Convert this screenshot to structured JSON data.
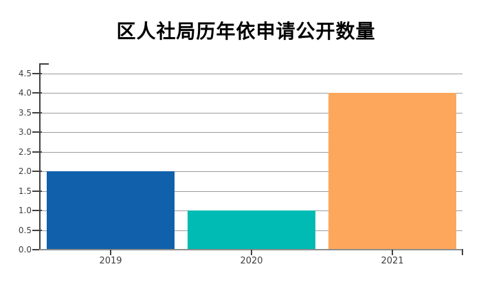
{
  "chart_data": {
    "type": "bar",
    "title": "区人社局历年依申请公开数量",
    "categories": [
      "2019",
      "2020",
      "2021"
    ],
    "values": [
      2,
      1,
      4
    ],
    "bar_colors": [
      "#1160AC",
      "#00BBB3",
      "#FDA75C"
    ],
    "xlabel": "",
    "ylabel": "",
    "ylim": [
      0,
      4.5
    ],
    "ytick_interval": 0.5,
    "ytick_labels": [
      "0.0",
      "0.5",
      "1.0",
      "1.5",
      "2.0",
      "2.5",
      "3.0",
      "3.5",
      "4.0",
      "4.5"
    ],
    "grid": "horizontal-solid",
    "legend_position": "none"
  },
  "style": {
    "background": "#ffffff",
    "title": "#000000",
    "grid": "#9b9b9b",
    "axis_y": "#3f3f3f",
    "axis_x": "#8e8e8e",
    "tick_label": "#3d3d3d"
  }
}
